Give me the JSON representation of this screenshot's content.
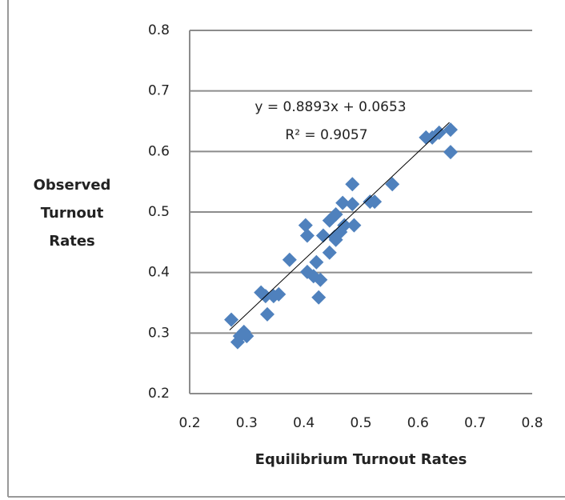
{
  "chart_data": {
    "type": "scatter",
    "x_label": "Equilibrium Turnout Rates",
    "y_label": "Observed Turnout Rates",
    "annotations": [
      "y = 0.8893x + 0.0653",
      "R² = 0.9057"
    ],
    "xlim": [
      0.2,
      0.8
    ],
    "xticks": [
      0.2,
      0.3,
      0.4,
      0.5,
      0.6,
      0.7,
      0.8
    ],
    "ylim": [
      0.2,
      0.8
    ],
    "yticks": [
      0.2,
      0.3,
      0.4,
      0.5,
      0.6,
      0.7,
      0.8
    ],
    "grid": true,
    "series": [
      {
        "color": "#4f81bd",
        "x": [
          0.273,
          0.284,
          0.295,
          0.3,
          0.288,
          0.325,
          0.333,
          0.336,
          0.347,
          0.356,
          0.375,
          0.403,
          0.406,
          0.406,
          0.417,
          0.422,
          0.429,
          0.426,
          0.434,
          0.445,
          0.454,
          0.445,
          0.456,
          0.464,
          0.471,
          0.456,
          0.468,
          0.485,
          0.485,
          0.488,
          0.516,
          0.524,
          0.555,
          0.614,
          0.625,
          0.637,
          0.657,
          0.657
        ],
        "values": [
          0.322,
          0.285,
          0.302,
          0.295,
          0.295,
          0.367,
          0.361,
          0.331,
          0.361,
          0.364,
          0.421,
          0.478,
          0.461,
          0.401,
          0.394,
          0.417,
          0.388,
          0.359,
          0.461,
          0.486,
          0.459,
          0.433,
          0.454,
          0.467,
          0.478,
          0.496,
          0.515,
          0.546,
          0.513,
          0.478,
          0.517,
          0.517,
          0.546,
          0.623,
          0.623,
          0.631,
          0.636,
          0.599
        ]
      }
    ],
    "trendline": {
      "color": "#000000",
      "x": [
        0.27,
        0.655
      ],
      "values": [
        0.305,
        0.648
      ]
    }
  }
}
